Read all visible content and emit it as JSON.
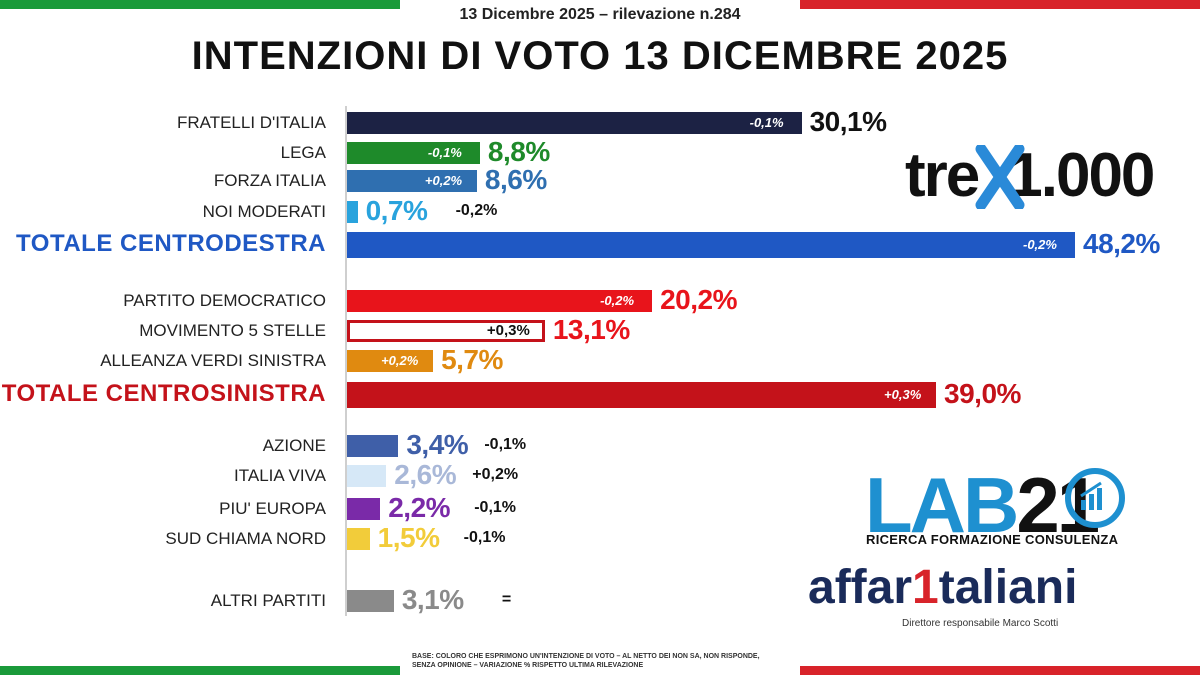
{
  "header": {
    "subtitle": "13 Dicembre 2025 – rilevazione n.284",
    "title": "INTENZIONI DI VOTO 13 DICEMBRE 2025"
  },
  "logos": {
    "tre_text": "tre",
    "tre_rest": "1.000",
    "lab_text": "LAB",
    "lab_num": "21",
    "lab_sub": "RICERCA FORMAZIONE CONSULENZA",
    "affari_a": "affar",
    "affari_1": "1",
    "affari_b": "taliani",
    "direttore": "Direttore responsabile Marco Scotti"
  },
  "footnote": "BASE: COLORO CHE ESPRIMONO UN'INTENZIONE DI VOTO – AL NETTO DEI NON SA, NON RISPONDE, SENZA OPINIONE – VARIAZIONE % RISPETTO ULTIMA RILEVAZIONE",
  "colors": {
    "fdi": "#1c2244",
    "lega": "#1e8a2a",
    "fi": "#2f6fb0",
    "nm": "#29a3dd",
    "centrodestra": "#1f58c4",
    "pd": "#e8141b",
    "m5s": "#ffffff",
    "avs": "#e08a10",
    "centrosinistra": "#c4121a",
    "azione": "#3f5fa8",
    "iv": "#d6e8f7",
    "pe": "#7a2aa8",
    "scn": "#f2cc3a",
    "altri": "#8a8a8a"
  },
  "chart_data": {
    "type": "bar",
    "orientation": "horizontal",
    "scale_max": 48.2,
    "rows": [
      {
        "key": "fdi",
        "label": "FRATELLI D'ITALIA",
        "value": 30.1,
        "value_text": "30,1%",
        "variation": "-0,1%",
        "var_pos": "inside",
        "value_color": "#111111"
      },
      {
        "key": "lega",
        "label": "LEGA",
        "value": 8.8,
        "value_text": "8,8%",
        "variation": "-0,1%",
        "var_pos": "inside",
        "value_color": "#1e8a2a"
      },
      {
        "key": "fi",
        "label": "FORZA ITALIA",
        "value": 8.6,
        "value_text": "8,6%",
        "variation": "+0,2%",
        "var_pos": "inside",
        "value_color": "#2f6fb0"
      },
      {
        "key": "nm",
        "label": "NOI MODERATI",
        "value": 0.7,
        "value_text": "0,7%",
        "variation": "-0,2%",
        "var_pos": "outside",
        "value_color": "#29a3dd"
      },
      {
        "key": "centrodestra",
        "label": "TOTALE CENTRODESTRA",
        "value": 48.2,
        "value_text": "48,2%",
        "variation": "-0,2%",
        "var_pos": "inside",
        "value_color": "#1f58c4",
        "total": true,
        "label_color": "#1f58c4"
      },
      {
        "key": "pd",
        "label": "PARTITO DEMOCRATICO",
        "value": 20.2,
        "value_text": "20,2%",
        "variation": "-0,2%",
        "var_pos": "inside",
        "value_color": "#e8141b"
      },
      {
        "key": "m5s",
        "label": "MOVIMENTO 5 STELLE",
        "value": 13.1,
        "value_text": "13,1%",
        "variation": "+0,3%",
        "var_pos": "inside-dark",
        "value_color": "#e8141b"
      },
      {
        "key": "avs",
        "label": "ALLEANZA VERDI SINISTRA",
        "value": 5.7,
        "value_text": "5,7%",
        "variation": "+0,2%",
        "var_pos": "inside",
        "value_color": "#e08a10"
      },
      {
        "key": "centrosinistra",
        "label": "TOTALE CENTROSINISTRA",
        "value": 39.0,
        "value_text": "39,0%",
        "variation": "+0,3%",
        "var_pos": "inside",
        "value_color": "#c4121a",
        "total": true,
        "label_color": "#c4121a"
      },
      {
        "key": "azione",
        "label": "AZIONE",
        "value": 3.4,
        "value_text": "3,4%",
        "variation": "-0,1%",
        "var_pos": "outside",
        "value_color": "#3f5fa8"
      },
      {
        "key": "iv",
        "label": "ITALIA VIVA",
        "value": 2.6,
        "value_text": "2,6%",
        "variation": "+0,2%",
        "var_pos": "outside",
        "value_color": "#a9b8d8"
      },
      {
        "key": "pe",
        "label": "PIU' EUROPA",
        "value": 2.2,
        "value_text": "2,2%",
        "variation": "-0,1%",
        "var_pos": "outside",
        "value_color": "#7a2aa8"
      },
      {
        "key": "scn",
        "label": "SUD CHIAMA NORD",
        "value": 1.5,
        "value_text": "1,5%",
        "variation": "-0,1%",
        "var_pos": "outside",
        "value_color": "#f2cc3a"
      },
      {
        "key": "altri",
        "label": "ALTRI PARTITI",
        "value": 3.1,
        "value_text": "3,1%",
        "variation": "=",
        "var_pos": "outside",
        "value_color": "#8a8a8a"
      }
    ]
  }
}
